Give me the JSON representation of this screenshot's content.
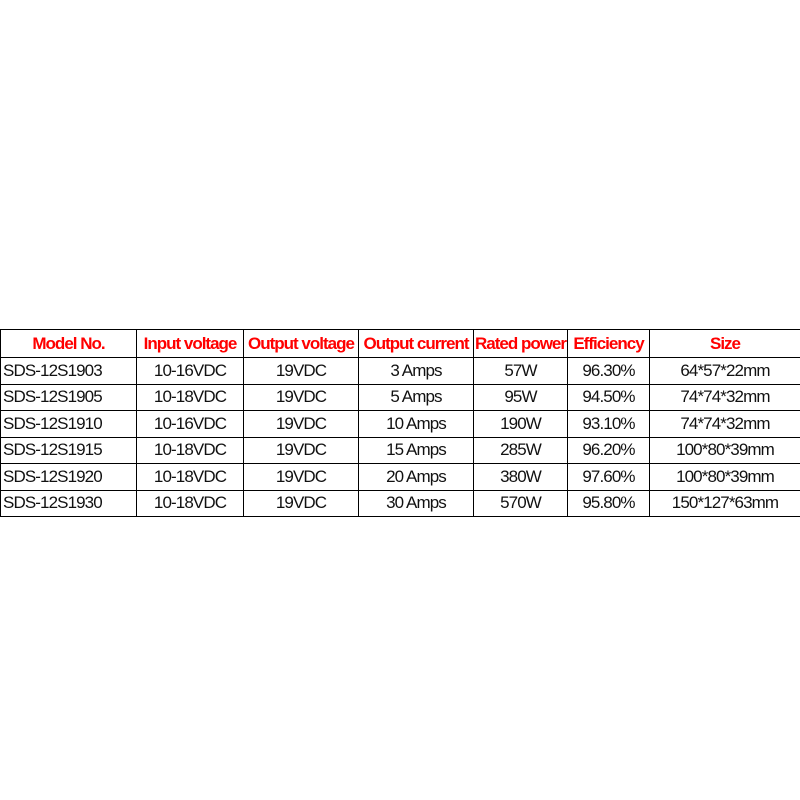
{
  "table": {
    "header_color": "#ff0000",
    "columns": [
      "Model No.",
      "Input voltage",
      "Output voltage",
      "Output current",
      "Rated power",
      "Efficiency",
      "Size"
    ],
    "rows": [
      [
        "SDS-12S1903",
        "10-16VDC",
        "19VDC",
        "3 Amps",
        "57W",
        "96.30%",
        "64*57*22mm"
      ],
      [
        "SDS-12S1905",
        "10-18VDC",
        "19VDC",
        "5 Amps",
        "95W",
        "94.50%",
        "74*74*32mm"
      ],
      [
        "SDS-12S1910",
        "10-16VDC",
        "19VDC",
        "10 Amps",
        "190W",
        "93.10%",
        "74*74*32mm"
      ],
      [
        "SDS-12S1915",
        "10-18VDC",
        "19VDC",
        "15 Amps",
        "285W",
        "96.20%",
        "100*80*39mm"
      ],
      [
        "SDS-12S1920",
        "10-18VDC",
        "19VDC",
        "20 Amps",
        "380W",
        "97.60%",
        "100*80*39mm"
      ],
      [
        "SDS-12S1930",
        "10-18VDC",
        "19VDC",
        "30 Amps",
        "570W",
        "95.80%",
        "150*127*63mm"
      ]
    ]
  }
}
